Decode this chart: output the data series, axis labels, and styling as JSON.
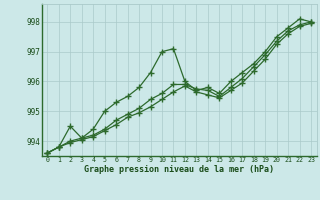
{
  "title": "Graphe pression niveau de la mer (hPa)",
  "x": [
    0,
    1,
    2,
    3,
    4,
    5,
    6,
    7,
    8,
    9,
    10,
    11,
    12,
    13,
    14,
    15,
    16,
    17,
    18,
    19,
    20,
    21,
    22,
    23
  ],
  "line1": [
    993.6,
    993.8,
    994.5,
    994.1,
    994.4,
    995.0,
    995.3,
    995.5,
    995.8,
    996.3,
    997.0,
    997.1,
    996.0,
    995.7,
    995.8,
    995.6,
    996.0,
    996.3,
    996.6,
    997.0,
    997.5,
    997.8,
    998.1,
    998.0
  ],
  "line2": [
    993.6,
    993.8,
    994.0,
    994.1,
    994.2,
    994.4,
    994.7,
    994.9,
    995.1,
    995.4,
    995.6,
    995.9,
    995.9,
    995.75,
    995.7,
    995.5,
    995.8,
    996.1,
    996.5,
    996.9,
    997.35,
    997.7,
    997.9,
    998.0
  ],
  "line3": [
    993.6,
    993.8,
    993.95,
    994.05,
    994.15,
    994.35,
    994.55,
    994.8,
    994.95,
    995.15,
    995.4,
    995.65,
    995.85,
    995.65,
    995.55,
    995.45,
    995.7,
    995.95,
    996.35,
    996.75,
    997.25,
    997.6,
    997.85,
    997.95
  ],
  "line_color": "#2d6a2d",
  "bg_color": "#cce8e8",
  "grid_color": "#aacaca",
  "ylim": [
    993.5,
    998.6
  ],
  "yticks": [
    994,
    995,
    996,
    997,
    998
  ],
  "title_color": "#1a4d1a",
  "marker": "+",
  "markersize": 4,
  "linewidth": 0.9
}
